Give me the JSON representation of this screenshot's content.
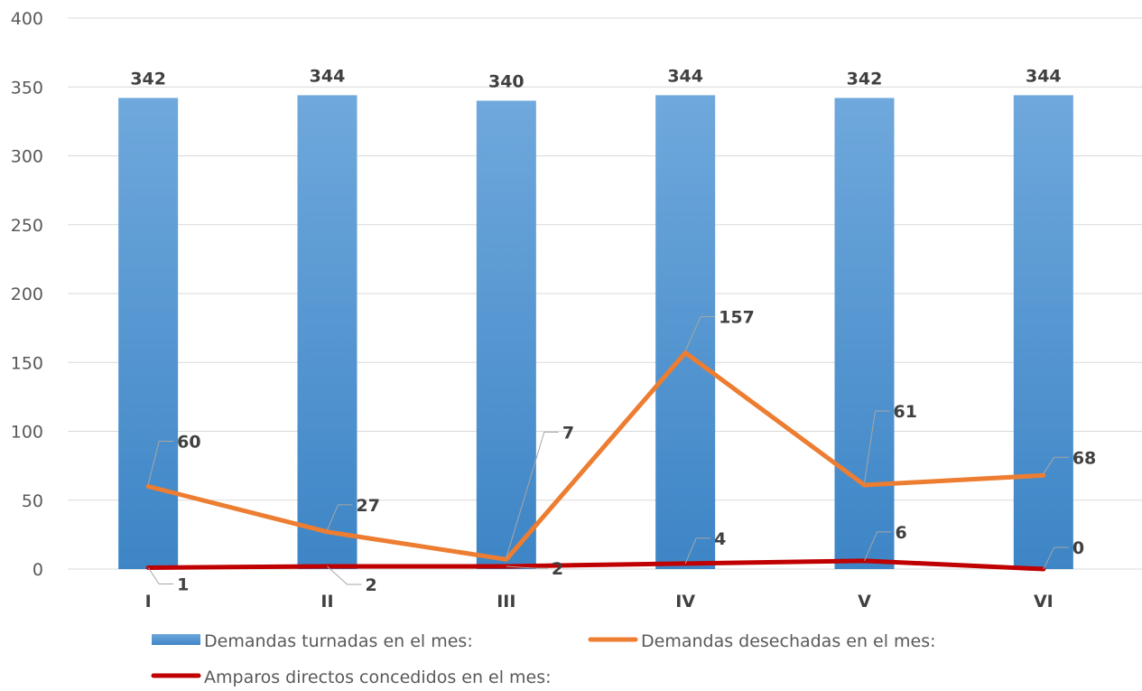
{
  "chart_data": {
    "type": "bar",
    "categories": [
      "I",
      "II",
      "III",
      "IV",
      "V",
      "VI"
    ],
    "ylim": [
      0,
      400
    ],
    "yticks": [
      0,
      50,
      100,
      150,
      200,
      250,
      300,
      350,
      400
    ],
    "grid": true,
    "legend_position": "bottom",
    "series": [
      {
        "name": "Demandas turnadas en el mes:",
        "type": "bar",
        "color": "#4a8fd4",
        "values": [
          342,
          344,
          340,
          344,
          342,
          344
        ]
      },
      {
        "name": "Demandas desechadas en el mes:",
        "type": "line",
        "color": "#ed7d31",
        "values": [
          60,
          27,
          7,
          157,
          61,
          68
        ]
      },
      {
        "name": "Amparos directos concedidos en el mes:",
        "type": "line",
        "color": "#c00000",
        "values": [
          1,
          2,
          2,
          4,
          6,
          0
        ]
      }
    ]
  }
}
